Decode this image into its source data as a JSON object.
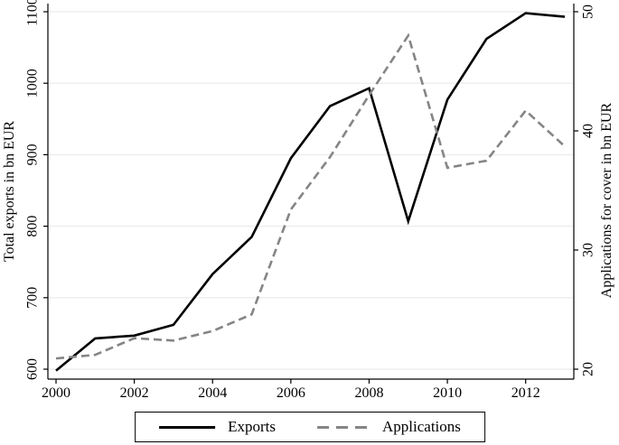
{
  "figure": {
    "background": "#ffffff",
    "axis_color": "#000000",
    "grid_color": "#ededed",
    "tick_label_color": "#000000"
  },
  "chart_data": {
    "type": "line",
    "title": "",
    "x": [
      2000,
      2001,
      2002,
      2003,
      2004,
      2005,
      2006,
      2007,
      2008,
      2009,
      2010,
      2011,
      2012,
      2013
    ],
    "series": [
      {
        "name": "Exports",
        "axis": "left",
        "color": "#000000",
        "style": "solid",
        "values": [
          598,
          643,
          647,
          662,
          733,
          785,
          895,
          968,
          993,
          807,
          977,
          1062,
          1098,
          1093
        ]
      },
      {
        "name": "Applications",
        "axis": "right",
        "color": "#858585",
        "style": "dashed",
        "values": [
          20.9,
          21.2,
          22.6,
          22.4,
          23.2,
          24.6,
          33.4,
          37.8,
          43.0,
          48.0,
          36.9,
          37.5,
          41.7,
          38.7
        ]
      }
    ],
    "left_axis": {
      "label": "Total exports in bn EUR",
      "ticks": [
        600,
        700,
        800,
        900,
        1000,
        1100
      ],
      "range": [
        600,
        1100
      ]
    },
    "right_axis": {
      "label": "Applications for cover in bn EUR",
      "ticks": [
        20,
        30,
        40,
        50
      ],
      "range": [
        20,
        50
      ]
    },
    "x_axis": {
      "ticks": [
        2000,
        2002,
        2004,
        2006,
        2008,
        2010,
        2012
      ],
      "range": [
        2000,
        2013
      ]
    },
    "grid": "horizontal-only",
    "legend_position": "bottom-center"
  },
  "legend": {
    "exports_label": "Exports",
    "applications_label": "Applications"
  }
}
